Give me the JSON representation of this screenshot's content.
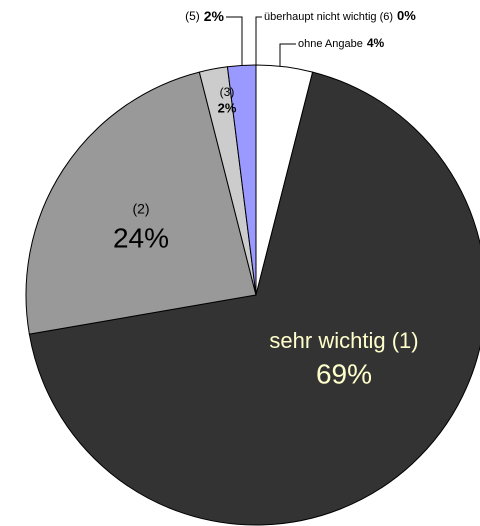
{
  "chart_data": {
    "type": "pie",
    "categories": [
      "ohne Angabe",
      "sehr wichtig (1)",
      "(2)",
      "(3)",
      "(5)",
      "überhaupt nicht wichtig (6)"
    ],
    "values": [
      4,
      69,
      24,
      2,
      2,
      0
    ],
    "value_labels": [
      "4%",
      "69%",
      "24%",
      "2%",
      "2%",
      "0%"
    ],
    "colors": [
      "#ffffff",
      "#333333",
      "#999999",
      "#cccccc",
      "#9999ff",
      "#ffffff"
    ]
  }
}
